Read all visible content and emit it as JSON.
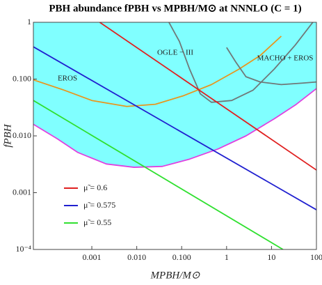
{
  "chart_data": {
    "type": "line",
    "title": "PBH abundance fPBH vs MPBH/M⊙ at NNNLO (C = 1)",
    "xlabel": "MPBH/M⊙",
    "ylabel": "fPBH",
    "xscale": "log",
    "yscale": "log",
    "xlim": [
      5e-05,
      100
    ],
    "ylim": [
      0.0001,
      1
    ],
    "xticks": [
      {
        "value": 0.001,
        "label": "0.001"
      },
      {
        "value": 0.01,
        "label": "0.010"
      },
      {
        "value": 0.1,
        "label": "0.100"
      },
      1,
      10,
      100
    ],
    "yticks": [
      {
        "value": 0.0001,
        "label": "10⁻⁴"
      },
      {
        "value": 0.001,
        "label": "0.001"
      },
      {
        "value": 0.01,
        "label": "0.010"
      },
      {
        "value": 0.1,
        "label": "0.100"
      },
      1
    ],
    "annotations": [
      "OGLE − III",
      "EROS",
      "MACHO + EROS"
    ],
    "legend": "lower left",
    "series": [
      {
        "color": "#e040e0",
        "fill": "#80ffff",
        "x": [
          5e-05,
          0.00017,
          0.00049,
          0.0021,
          0.0087,
          0.037,
          0.15,
          0.65,
          2.7,
          11.5,
          34,
          100
        ],
        "values": [
          0.016,
          0.0089,
          0.0051,
          0.0032,
          0.0028,
          0.0029,
          0.0039,
          0.0059,
          0.01,
          0.02,
          0.035,
          0.068
        ]
      },
      {
        "color": "#e8961e",
        "x": [
          5e-05,
          0.00024,
          0.001,
          0.006,
          0.026,
          0.11,
          0.46,
          1.9,
          5.6,
          16.5
        ],
        "values": [
          0.097,
          0.064,
          0.042,
          0.033,
          0.036,
          0.051,
          0.08,
          0.15,
          0.26,
          0.57
        ]
      },
      {
        "color": "#707878",
        "x": [
          0.052,
          0.089,
          0.15,
          0.26,
          0.46,
          1.3,
          3.9,
          11.5,
          34,
          83
        ],
        "values": [
          1,
          0.46,
          0.15,
          0.055,
          0.039,
          0.042,
          0.064,
          0.15,
          0.4,
          1
        ]
      },
      {
        "color": "#707878",
        "x": [
          1,
          1.6,
          2.7,
          5.6,
          16.5,
          49,
          100
        ],
        "values": [
          0.36,
          0.2,
          0.11,
          0.089,
          0.08,
          0.085,
          0.089
        ]
      },
      {
        "name": "μ̃ = 0.6",
        "color": "#e02020",
        "x": [
          0.0015,
          100
        ],
        "values": [
          1,
          0.0025
        ]
      },
      {
        "name": "μ̃ = 0.575",
        "color": "#2020d0",
        "x": [
          5e-05,
          100
        ],
        "values": [
          0.37,
          0.0005
        ]
      },
      {
        "name": "μ̃ = 0.55",
        "color": "#30e030",
        "x": [
          5e-05,
          18
        ],
        "values": [
          0.042,
          0.0001
        ]
      }
    ]
  }
}
